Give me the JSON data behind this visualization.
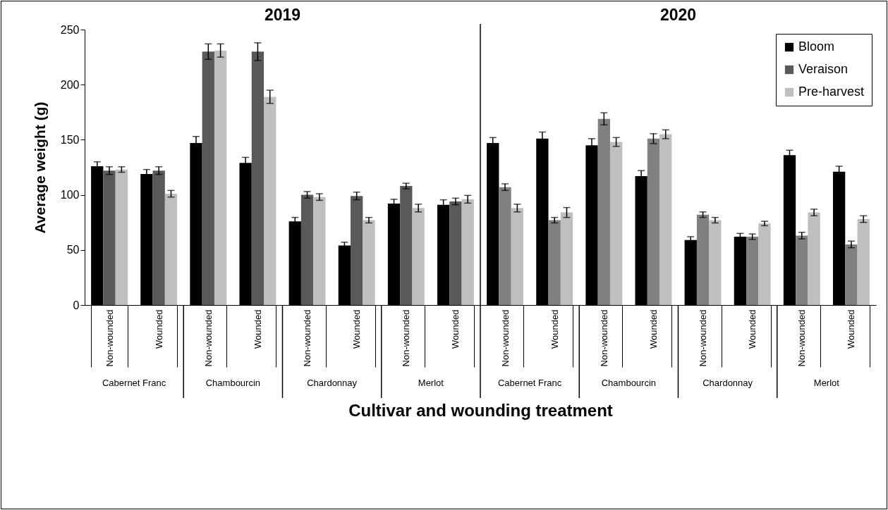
{
  "chart_data": {
    "type": "bar",
    "xlabel": "Cultivar and wounding treatment",
    "ylabel": "Average weight (g)",
    "categories": [
      "Non-wounded",
      "Wounded",
      "Non-wounded",
      "Wounded",
      "Non-wounded",
      "Wounded",
      "Non-wounded",
      "Wounded",
      "Non-wounded",
      "Wounded",
      "Non-wounded",
      "Wounded",
      "Non-wounded",
      "Wounded",
      "Non-wounded",
      "Wounded"
    ],
    "annotations": [
      "2019",
      "2020",
      "Cabernet Franc",
      "Chambourcin",
      "Chardonnay",
      "Merlot",
      "Cabernet Franc",
      "Chambourcin",
      "Chardonnay",
      "Merlot"
    ],
    "ylim": [
      0,
      250
    ],
    "yticks": [
      0,
      50,
      100,
      150,
      200,
      250
    ],
    "legend": "top right",
    "series": [
      {
        "name": "Bloom",
        "color": "#000000",
        "values": [
          126,
          119,
          147,
          129,
          76,
          54,
          92,
          91,
          147,
          151,
          145,
          117,
          59,
          62,
          136,
          121
        ],
        "errors": [
          4,
          4,
          6,
          5,
          3.5,
          3,
          4,
          4.5,
          5,
          6,
          6,
          5,
          3,
          3,
          4.5,
          5
        ]
      },
      {
        "name": "Veraison",
        "color": "#595959",
        "colors": [
          "#595959",
          "#595959",
          "#595959",
          "#595959",
          "#595959",
          "#595959",
          "#595959",
          "#595959",
          "#808080",
          "#808080",
          "#808080",
          "#808080",
          "#808080",
          "#808080",
          "#808080",
          "#808080"
        ],
        "values": [
          122,
          122,
          230,
          230,
          100,
          99,
          108,
          94,
          107,
          77,
          169,
          151,
          82,
          62,
          63,
          55
        ],
        "errors": [
          3.5,
          3.5,
          7,
          8,
          3,
          3.5,
          2.5,
          3,
          3,
          2.5,
          5.5,
          4.5,
          2.5,
          2.5,
          3,
          3
        ]
      },
      {
        "name": "Pre-harvest",
        "color": "#bfbfbf",
        "values": [
          123,
          101,
          231,
          189,
          98,
          77,
          88,
          96,
          88,
          84,
          148,
          155,
          77,
          74,
          84,
          78
        ],
        "errors": [
          2.5,
          3,
          6,
          6,
          3,
          2.5,
          3.5,
          3.5,
          3.5,
          4.5,
          4,
          4,
          2.5,
          2,
          3,
          3
        ]
      }
    ]
  }
}
